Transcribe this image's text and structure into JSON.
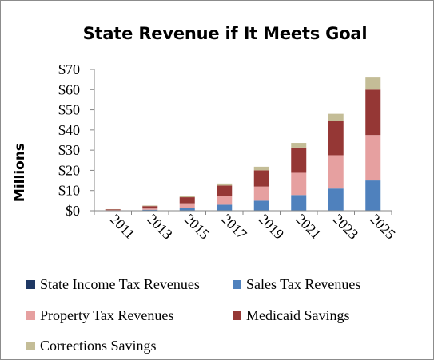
{
  "chart_data": {
    "type": "bar",
    "stacked": true,
    "title": "State Revenue if It Meets Goal",
    "ylabel": "Millions",
    "xlabel": "",
    "ylim": [
      0,
      70
    ],
    "y_ticks": [
      "$0",
      "$10",
      "$20",
      "$30",
      "$40",
      "$50",
      "$60",
      "$70"
    ],
    "y_tick_values": [
      0,
      10,
      20,
      30,
      40,
      50,
      60,
      70
    ],
    "categories": [
      "2011",
      "2013",
      "2015",
      "2017",
      "2019",
      "2021",
      "2023",
      "2025"
    ],
    "grid": false,
    "legend_position": "bottom",
    "series": [
      {
        "name": "State Income Tax Revenues",
        "color": "#1f3864",
        "values": [
          0,
          0,
          0,
          0,
          0,
          0,
          0,
          0
        ]
      },
      {
        "name": "Sales Tax Revenues",
        "color": "#4f81bd",
        "values": [
          0.2,
          0.5,
          1.4,
          3.0,
          5.0,
          7.8,
          11.0,
          15.0
        ]
      },
      {
        "name": "Property Tax Revenues",
        "color": "#e6a0a0",
        "values": [
          0.1,
          0.6,
          2.3,
          4.5,
          7.0,
          11.0,
          16.5,
          22.5
        ]
      },
      {
        "name": "Medicaid Savings",
        "color": "#953735",
        "values": [
          0.4,
          1.2,
          3.0,
          5.0,
          8.0,
          12.5,
          17.0,
          22.5
        ]
      },
      {
        "name": "Corrections Savings",
        "color": "#c4bd97",
        "values": [
          0.1,
          0.3,
          0.6,
          1.0,
          1.8,
          2.3,
          3.5,
          6.0
        ]
      }
    ]
  }
}
